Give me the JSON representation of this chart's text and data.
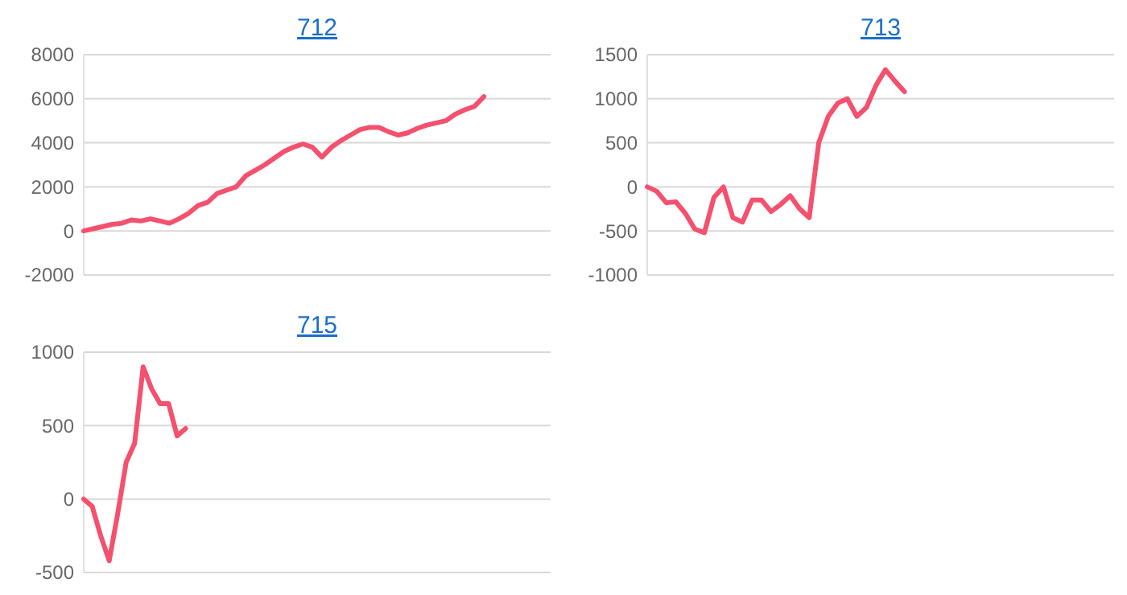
{
  "chart_data": [
    {
      "type": "line",
      "title": "712",
      "categories": [
        null,
        null,
        null,
        null,
        null,
        null,
        null,
        null,
        null,
        null,
        null,
        null,
        null,
        null,
        null,
        null,
        null,
        null,
        null,
        null,
        null,
        null,
        null,
        null,
        null,
        null,
        null,
        null,
        null,
        null,
        null,
        null,
        null,
        null,
        null,
        null,
        null,
        null,
        null,
        null,
        null,
        null,
        null,
        null,
        null,
        null,
        null,
        null,
        null,
        null
      ],
      "series": [
        {
          "color": "#f5506e",
          "values": [
            0,
            100,
            200,
            300,
            350,
            500,
            450,
            550,
            450,
            350,
            550,
            800,
            1150,
            1300,
            1700,
            1850,
            2000,
            2500,
            2750,
            3000,
            3300,
            3600,
            3800,
            3950,
            3800,
            3350,
            3800,
            4100,
            4350,
            4600,
            4700,
            4700,
            4500,
            4350,
            4450,
            4650,
            4800,
            4900,
            5000,
            5300,
            5500,
            5650,
            6100,
            null,
            null,
            null,
            null,
            null,
            null,
            null
          ]
        }
      ],
      "ylim": [
        -2000,
        8000
      ],
      "yticks": [
        -2000,
        0,
        2000,
        4000,
        6000,
        8000
      ],
      "grid": "y",
      "tick_labels": "y",
      "marker": "none",
      "line_style": "solid"
    },
    {
      "type": "line",
      "title": "713",
      "categories": [
        null,
        null,
        null,
        null,
        null,
        null,
        null,
        null,
        null,
        null,
        null,
        null,
        null,
        null,
        null,
        null,
        null,
        null,
        null,
        null,
        null,
        null,
        null,
        null,
        null,
        null,
        null,
        null,
        null,
        null,
        null,
        null,
        null,
        null,
        null,
        null,
        null,
        null,
        null,
        null,
        null,
        null,
        null,
        null,
        null,
        null,
        null,
        null,
        null,
        null
      ],
      "series": [
        {
          "color": "#f5506e",
          "values": [
            0,
            -50,
            -180,
            -170,
            -300,
            -480,
            -520,
            -120,
            0,
            -350,
            -400,
            -150,
            -150,
            -280,
            -200,
            -100,
            -250,
            -350,
            500,
            800,
            950,
            1000,
            800,
            900,
            1150,
            1330,
            1200,
            1080,
            null,
            null,
            null,
            null,
            null,
            null,
            null,
            null,
            null,
            null,
            null,
            null,
            null,
            null,
            null,
            null,
            null,
            null,
            null,
            null,
            null,
            null
          ]
        }
      ],
      "ylim": [
        -1000,
        1500
      ],
      "yticks": [
        -1000,
        -500,
        0,
        500,
        1000,
        1500
      ],
      "grid": "y",
      "tick_labels": "y",
      "marker": "none",
      "line_style": "solid"
    },
    {
      "type": "line",
      "title": "715",
      "categories": [
        null,
        null,
        null,
        null,
        null,
        null,
        null,
        null,
        null,
        null,
        null,
        null,
        null,
        null,
        null,
        null,
        null,
        null,
        null,
        null,
        null,
        null,
        null,
        null,
        null,
        null,
        null,
        null,
        null,
        null,
        null,
        null,
        null,
        null,
        null,
        null,
        null,
        null,
        null,
        null,
        null,
        null,
        null,
        null,
        null,
        null,
        null,
        null,
        null,
        null,
        null,
        null,
        null,
        null,
        null,
        null
      ],
      "series": [
        {
          "color": "#f5506e",
          "values": [
            0,
            -50,
            -250,
            -420,
            -100,
            250,
            380,
            900,
            750,
            650,
            650,
            430,
            480,
            null,
            null,
            null,
            null,
            null,
            null,
            null,
            null,
            null,
            null,
            null,
            null,
            null,
            null,
            null,
            null,
            null,
            null,
            null,
            null,
            null,
            null,
            null,
            null,
            null,
            null,
            null,
            null,
            null,
            null,
            null,
            null,
            null,
            null,
            null,
            null,
            null,
            null,
            null,
            null,
            null,
            null,
            null
          ]
        }
      ],
      "ylim": [
        -500,
        1000
      ],
      "yticks": [
        -500,
        0,
        500,
        1000
      ],
      "grid": "y",
      "tick_labels": "y",
      "marker": "none",
      "line_style": "solid"
    }
  ]
}
